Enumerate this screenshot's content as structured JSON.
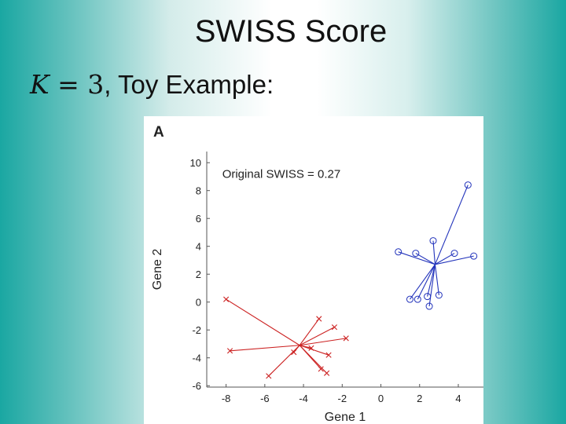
{
  "slide": {
    "title": "SWISS Score",
    "subtitle_math": "K",
    "subtitle_eq": " = 3",
    "subtitle_text": ", Toy Example:"
  },
  "chart_data": {
    "type": "scatter",
    "panel_label": "A",
    "annotation": "Original SWISS = 0.27",
    "xlabel": "Gene 1",
    "ylabel": "Gene 2",
    "xlim": [
      -9,
      5.3
    ],
    "ylim": [
      -6.1,
      10.8
    ],
    "xticks": [
      -8,
      -6,
      -4,
      -2,
      0,
      2,
      4
    ],
    "yticks": [
      -6,
      -4,
      -2,
      0,
      2,
      4,
      6,
      8,
      10
    ],
    "series": [
      {
        "marker": "x",
        "color": "#cc2222",
        "centroid": [
          -4.2,
          -3.1
        ],
        "points": [
          [
            -8,
            0.2
          ],
          [
            -7.8,
            -3.5
          ],
          [
            -5.8,
            -5.3
          ],
          [
            -4.5,
            -3.6
          ],
          [
            -3.2,
            -1.2
          ],
          [
            -2.4,
            -1.8
          ],
          [
            -1.8,
            -2.6
          ],
          [
            -3.1,
            -4.8
          ],
          [
            -2.8,
            -5.1
          ],
          [
            -2.7,
            -3.8
          ],
          [
            -3.6,
            -3.3
          ]
        ]
      },
      {
        "marker": "o",
        "color": "#2233bb",
        "centroid": [
          2.8,
          2.7
        ],
        "points": [
          [
            4.5,
            8.4
          ],
          [
            2.7,
            4.4
          ],
          [
            0.9,
            3.6
          ],
          [
            1.8,
            3.5
          ],
          [
            3.8,
            3.5
          ],
          [
            4.8,
            3.3
          ],
          [
            1.5,
            0.2
          ],
          [
            1.9,
            0.2
          ],
          [
            2.4,
            0.4
          ],
          [
            3.0,
            0.5
          ],
          [
            2.5,
            -0.3
          ]
        ]
      }
    ]
  }
}
